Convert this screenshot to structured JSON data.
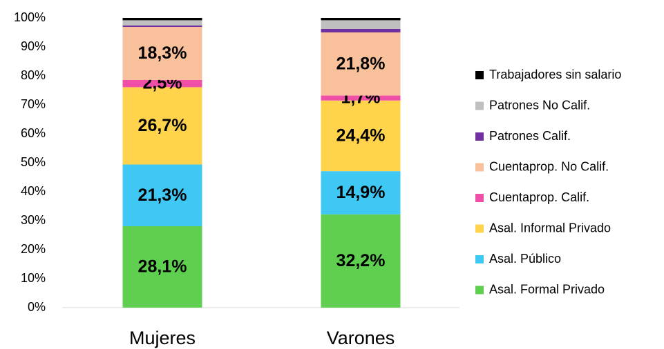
{
  "chart_data": {
    "type": "stacked_bar",
    "categories": [
      "Mujeres",
      "Varones"
    ],
    "series": [
      {
        "name": "Asal. Formal Privado",
        "color": "#5ecf4f",
        "values": [
          28.1,
          32.2
        ],
        "value_labels": [
          "28,1%",
          "32,2%"
        ]
      },
      {
        "name": "Asal. Público",
        "color": "#40c8f4",
        "values": [
          21.3,
          14.9
        ],
        "value_labels": [
          "21,3%",
          "14,9%"
        ]
      },
      {
        "name": "Asal. Informal Privado",
        "color": "#ffd34c",
        "values": [
          26.7,
          24.4
        ],
        "value_labels": [
          "26,7%",
          "24,4%"
        ]
      },
      {
        "name": "Cuentaprop. Calif.",
        "color": "#f04fa8",
        "values": [
          2.5,
          1.7
        ],
        "value_labels": [
          "2,5%",
          "1,7%"
        ]
      },
      {
        "name": "Cuentaprop. No Calif.",
        "color": "#f9c19b",
        "values": [
          18.3,
          21.8
        ],
        "value_labels": [
          "18,3%",
          "21,8%"
        ]
      },
      {
        "name": "Patrones Calif.",
        "color": "#7030a0",
        "values": [
          0.5,
          1.2
        ]
      },
      {
        "name": "Patrones No Calif.",
        "color": "#bfbfbf",
        "values": [
          1.8,
          3.0
        ]
      },
      {
        "name": "Trabajadores sin salario",
        "color": "#000000",
        "values": [
          0.8,
          0.8
        ]
      }
    ],
    "ylim": [
      0,
      100
    ],
    "yticks": [
      {
        "value": 0,
        "label": "0%"
      },
      {
        "value": 10,
        "label": "10%"
      },
      {
        "value": 20,
        "label": "20%"
      },
      {
        "value": 30,
        "label": "30%"
      },
      {
        "value": 40,
        "label": "40%"
      },
      {
        "value": 50,
        "label": "50%"
      },
      {
        "value": 60,
        "label": "60%"
      },
      {
        "value": 70,
        "label": "70%"
      },
      {
        "value": 80,
        "label": "80%"
      },
      {
        "value": 90,
        "label": "90%"
      },
      {
        "value": 100,
        "label": "100%"
      }
    ],
    "grid": false,
    "legend": "right"
  }
}
